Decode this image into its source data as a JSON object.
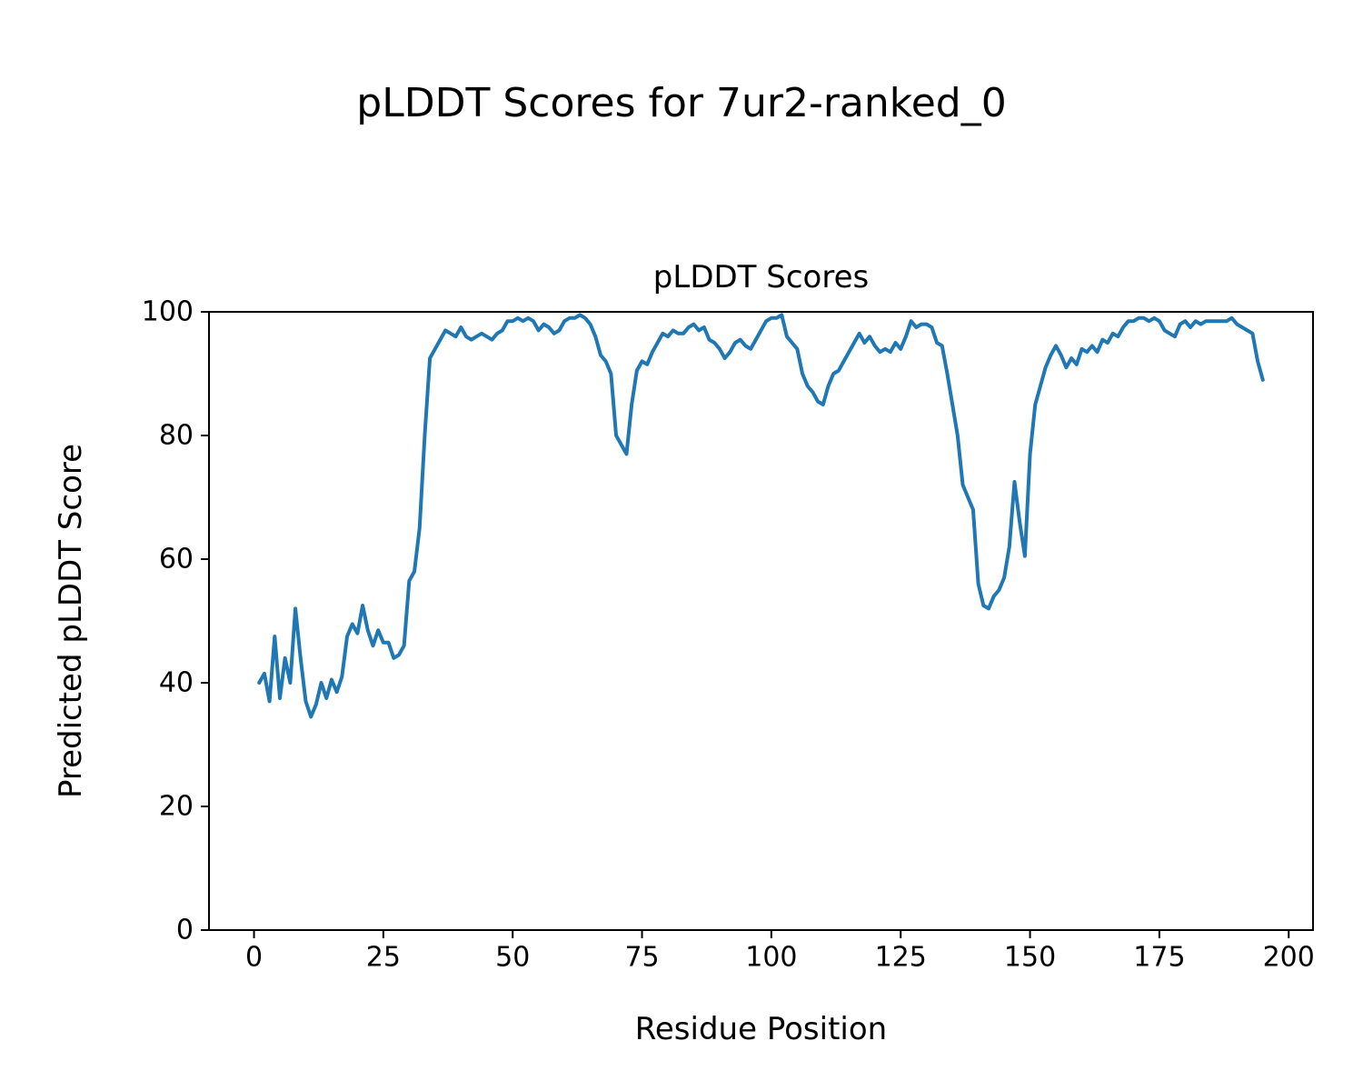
{
  "figure": {
    "suptitle": "pLDDT Scores for 7ur2-ranked_0",
    "background": "#ffffff"
  },
  "chart_data": {
    "type": "line",
    "title": "pLDDT Scores",
    "xlabel": "Residue Position",
    "ylabel": "Predicted pLDDT Score",
    "grid": false,
    "legend": null,
    "line_color": "#1f77b4",
    "line_width": 4,
    "xlim": [
      -8.7,
      204.7
    ],
    "ylim": [
      0,
      100
    ],
    "xticks": [
      0,
      25,
      50,
      75,
      100,
      125,
      150,
      175,
      200
    ],
    "yticks": [
      0,
      20,
      40,
      60,
      80,
      100
    ],
    "x_start": 1,
    "x_step": 1,
    "series": [
      {
        "name": "pLDDT",
        "values": [
          40,
          41.5,
          37,
          47.5,
          37.5,
          44,
          40,
          52,
          44,
          37,
          34.5,
          36.5,
          40,
          37.5,
          40.5,
          38.5,
          41,
          47.5,
          49.5,
          48,
          52.5,
          48.5,
          46,
          48.5,
          46.5,
          46.5,
          44,
          44.5,
          46,
          56.5,
          58,
          65,
          80,
          92.5,
          94,
          95.5,
          97,
          96.5,
          96,
          97.5,
          96,
          95.5,
          96,
          96.5,
          96,
          95.5,
          96.5,
          97,
          98.5,
          98.5,
          99,
          98.5,
          99,
          98.5,
          97,
          98,
          97.5,
          96.5,
          97,
          98.5,
          99,
          99,
          99.5,
          99,
          98,
          96,
          93,
          92,
          90,
          80,
          78.5,
          77,
          85,
          90.5,
          92,
          91.5,
          93.5,
          95,
          96.5,
          96,
          97,
          96.5,
          96.5,
          97.5,
          98,
          97,
          97.5,
          95.5,
          95,
          94,
          92.5,
          93.5,
          95,
          95.5,
          94.5,
          94,
          95.5,
          97,
          98.5,
          99,
          99,
          99.5,
          96,
          95,
          94,
          90,
          88,
          87,
          85.5,
          85,
          88,
          90,
          90.5,
          92,
          93.5,
          95,
          96.5,
          95,
          96,
          94.5,
          93.5,
          94,
          93.5,
          95,
          94,
          96,
          98.5,
          97.5,
          98,
          98,
          97.5,
          95,
          94.5,
          90,
          85,
          80,
          72,
          70,
          68,
          56,
          52.5,
          52,
          54,
          55,
          57,
          62,
          72.5,
          66,
          60.5,
          77,
          85,
          88,
          91,
          93,
          94.5,
          93,
          91,
          92.5,
          91.5,
          94,
          93.5,
          94.5,
          93.5,
          95.5,
          95,
          96.5,
          96,
          97.5,
          98.5,
          98.5,
          99,
          99,
          98.5,
          99,
          98.5,
          97,
          96.5,
          96,
          98,
          98.5,
          97.5,
          98.5,
          98,
          98.5,
          98.5,
          98.5,
          98.5,
          98.5,
          99,
          98,
          97.5,
          97,
          96.5,
          92,
          89
        ]
      }
    ]
  }
}
